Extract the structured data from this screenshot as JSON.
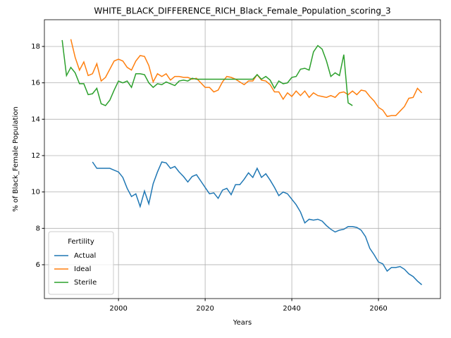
{
  "chart_data": {
    "type": "line",
    "title": "WHITE_BLACK_DIFFERENCE_RICH_Black_Female_Population_scoring_3",
    "x_label": "Years",
    "y_label": "% of Black_Female Population",
    "legend_title": "Fertility",
    "legend_loc": "lower left",
    "grid": true,
    "x": [
      1987,
      1988,
      1989,
      1990,
      1991,
      1992,
      1993,
      1994,
      1995,
      1996,
      1997,
      1998,
      1999,
      2000,
      2001,
      2002,
      2003,
      2004,
      2005,
      2006,
      2007,
      2008,
      2009,
      2010,
      2011,
      2012,
      2013,
      2014,
      2015,
      2016,
      2017,
      2018,
      2019,
      2020,
      2021,
      2022,
      2023,
      2024,
      2025,
      2026,
      2027,
      2028,
      2029,
      2030,
      2031,
      2032,
      2033,
      2034,
      2035,
      2036,
      2037,
      2038,
      2039,
      2040,
      2041,
      2042,
      2043,
      2044,
      2045,
      2046,
      2047,
      2048,
      2049,
      2050,
      2051,
      2052,
      2053,
      2054,
      2055,
      2056,
      2057,
      2058,
      2059,
      2060,
      2061,
      2062,
      2063,
      2064,
      2065,
      2066,
      2067,
      2068,
      2069,
      2070
    ],
    "xlim": [
      1982.9,
      2074.3
    ],
    "xticks": [
      2000,
      2020,
      2040,
      2060
    ],
    "ylim": [
      4.14,
      19.47
    ],
    "yticks": [
      6,
      8,
      10,
      12,
      14,
      16,
      18
    ],
    "series": [
      {
        "name": "Actual",
        "color": "#1f77b4",
        "values": [
          null,
          null,
          null,
          null,
          null,
          null,
          null,
          11.65,
          11.3,
          11.3,
          11.3,
          11.3,
          11.2,
          11.1,
          10.8,
          10.2,
          9.75,
          9.9,
          9.2,
          10.05,
          9.35,
          10.45,
          11.1,
          11.65,
          11.6,
          11.3,
          11.4,
          11.1,
          10.85,
          10.55,
          10.85,
          10.95,
          10.6,
          10.25,
          9.9,
          9.95,
          9.65,
          10.1,
          10.2,
          9.85,
          10.4,
          10.4,
          10.7,
          11.05,
          10.8,
          11.3,
          10.8,
          11.0,
          10.65,
          10.25,
          9.8,
          10.0,
          9.9,
          9.6,
          9.3,
          8.9,
          8.3,
          8.5,
          8.45,
          8.5,
          8.4,
          8.15,
          7.95,
          7.8,
          7.9,
          7.95,
          8.1,
          8.1,
          8.05,
          7.9,
          7.55,
          6.9,
          6.55,
          6.15,
          6.05,
          5.65,
          5.85,
          5.85,
          5.9,
          5.75,
          5.5,
          5.35,
          5.1,
          4.9
        ]
      },
      {
        "name": "Ideal",
        "color": "#ff7f0e",
        "values": [
          null,
          null,
          18.4,
          17.4,
          16.7,
          17.15,
          16.4,
          16.5,
          17.05,
          16.1,
          16.3,
          16.75,
          17.2,
          17.3,
          17.2,
          16.85,
          16.7,
          17.2,
          17.5,
          17.45,
          16.95,
          16.05,
          16.5,
          16.35,
          16.5,
          16.15,
          16.35,
          16.35,
          16.3,
          16.3,
          16.2,
          16.25,
          16.0,
          15.75,
          15.75,
          15.5,
          15.6,
          16.05,
          16.35,
          16.3,
          16.2,
          16.05,
          15.9,
          16.1,
          16.1,
          16.45,
          16.15,
          16.1,
          15.9,
          15.5,
          15.5,
          15.1,
          15.45,
          15.25,
          15.55,
          15.3,
          15.55,
          15.2,
          15.45,
          15.3,
          15.25,
          15.2,
          15.3,
          15.2,
          15.45,
          15.5,
          15.35,
          15.55,
          15.35,
          15.6,
          15.55,
          15.25,
          15.0,
          14.65,
          14.5,
          14.15,
          14.2,
          14.2,
          14.45,
          14.7,
          15.15,
          15.2,
          15.7,
          15.45
        ]
      },
      {
        "name": "Sterile",
        "color": "#2ca02c",
        "values": [
          18.35,
          16.4,
          16.85,
          16.55,
          15.95,
          15.95,
          15.35,
          15.4,
          15.7,
          14.85,
          14.75,
          15.05,
          15.6,
          16.1,
          16.0,
          16.1,
          15.75,
          16.5,
          16.5,
          16.45,
          16.0,
          15.75,
          15.95,
          15.9,
          16.05,
          15.95,
          15.85,
          16.1,
          16.15,
          16.1,
          16.25,
          16.2,
          16.2,
          16.2,
          16.2,
          16.2,
          16.2,
          16.2,
          16.2,
          16.2,
          16.2,
          16.2,
          16.2,
          16.2,
          16.2,
          16.45,
          16.2,
          16.35,
          16.15,
          15.7,
          16.1,
          15.95,
          16.0,
          16.3,
          16.35,
          16.75,
          16.8,
          16.7,
          17.7,
          18.05,
          17.85,
          17.2,
          16.35,
          16.55,
          16.4,
          17.55,
          14.9,
          14.75,
          null,
          null,
          null,
          null,
          null,
          null,
          null,
          null,
          null,
          null,
          null,
          null,
          null,
          null,
          null,
          null
        ]
      }
    ]
  }
}
